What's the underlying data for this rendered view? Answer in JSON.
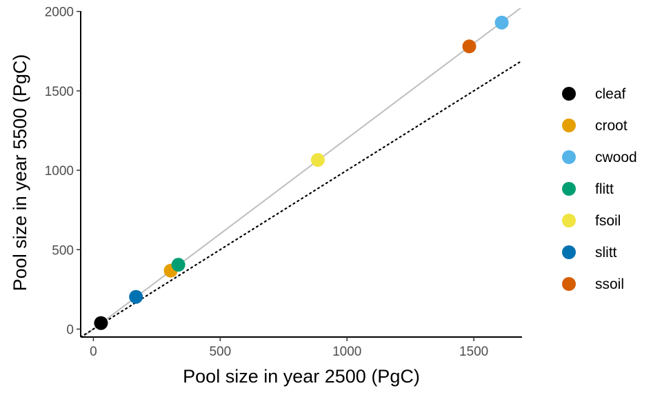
{
  "chart_data": {
    "type": "scatter",
    "xlabel": "Pool size in year 2500 (PgC)",
    "ylabel": "Pool size in year 5500 (PgC)",
    "xlim": [
      -50,
      1690
    ],
    "ylim": [
      -50,
      2020
    ],
    "x_ticks": [
      0,
      500,
      1000,
      1500
    ],
    "y_ticks": [
      0,
      500,
      1000,
      1500,
      2000
    ],
    "grid": false,
    "legend_position": "right",
    "reference_lines": [
      {
        "style": "solid",
        "color": "#bebebe",
        "slope": 1.2,
        "intercept": 0
      },
      {
        "style": "dotted",
        "color": "#000000",
        "slope": 1.0,
        "intercept": 0
      }
    ],
    "series": [
      {
        "name": "cleaf",
        "color": "#000000",
        "x": 30,
        "y": 38
      },
      {
        "name": "croot",
        "color": "#E69F00",
        "x": 305,
        "y": 368
      },
      {
        "name": "cwood",
        "color": "#56B4E9",
        "x": 1610,
        "y": 1930
      },
      {
        "name": "flitt",
        "color": "#009E73",
        "x": 335,
        "y": 405
      },
      {
        "name": "fsoil",
        "color": "#F0E442",
        "x": 885,
        "y": 1065
      },
      {
        "name": "slitt",
        "color": "#0072B2",
        "x": 168,
        "y": 203
      },
      {
        "name": "ssoil",
        "color": "#D55E00",
        "x": 1482,
        "y": 1780
      }
    ]
  }
}
